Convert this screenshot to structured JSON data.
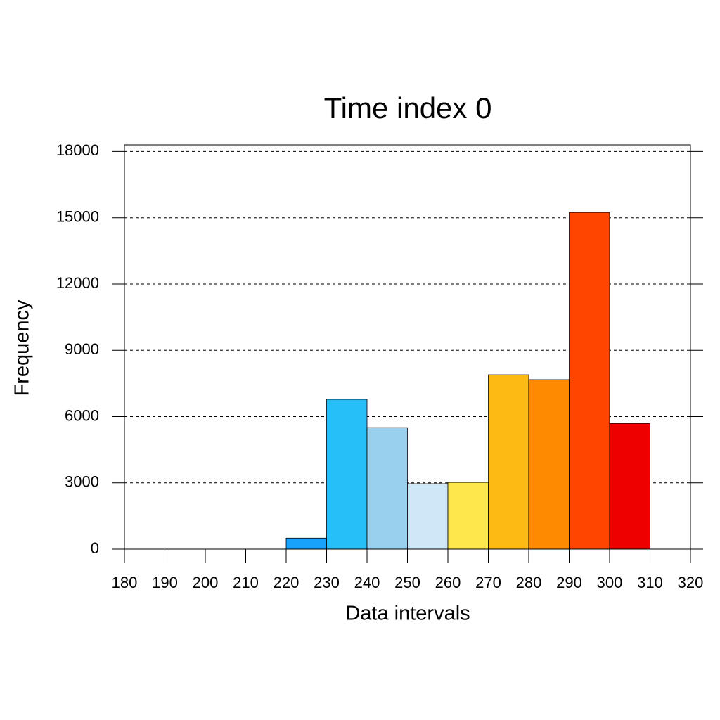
{
  "chart_data": {
    "type": "histogram",
    "title": "Time index 0",
    "x_label": "Data intervals",
    "y_label": "Frequency",
    "bins": [
      180,
      190,
      200,
      210,
      220,
      230,
      240,
      250,
      260,
      270,
      280,
      290,
      300,
      310,
      320
    ],
    "values": [
      0,
      0,
      0,
      0,
      500,
      6780,
      5500,
      2960,
      3020,
      7890,
      7670,
      15240,
      5690,
      0
    ],
    "colors": [
      "#1e50d0",
      "#1e6ee8",
      "#1e8cf0",
      "#12a0f0",
      "#18a2fb",
      "#27bff8",
      "#98d0ee",
      "#cfe8f7",
      "#fde74c",
      "#fdba12",
      "#fd8a00",
      "#ff4500",
      "#ee0000",
      "#b00000"
    ],
    "xlim": [
      180,
      320
    ],
    "xticks": [
      180,
      190,
      200,
      210,
      220,
      230,
      240,
      250,
      260,
      270,
      280,
      290,
      300,
      310,
      320
    ],
    "ylim": [
      0,
      18300
    ],
    "yticks": [
      0,
      3000,
      6000,
      9000,
      12000,
      15000,
      18000
    ],
    "grid": true
  }
}
